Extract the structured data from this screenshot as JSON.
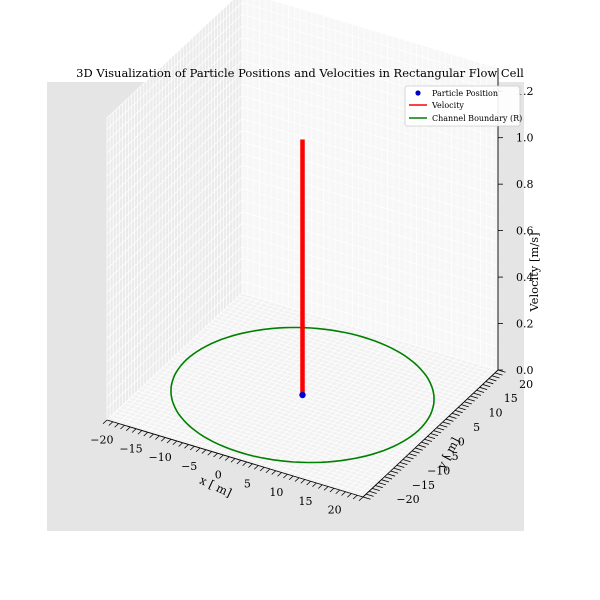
{
  "chart_data": {
    "type": "3d-line",
    "title": "3D Visualization of Particle Positions and Velocities in Rectangular Flow Cell",
    "xlabel": "x [ m]",
    "ylabel": "y [ m]",
    "zlabel": "Velocity [m/s]",
    "x_ticks": [
      -20,
      -15,
      -10,
      -5,
      0,
      5,
      10,
      15,
      20
    ],
    "y_ticks": [
      -20,
      -15,
      -10,
      -5,
      0,
      5,
      10,
      15,
      20
    ],
    "z_ticks": [
      "0.0",
      "0.2",
      "0.4",
      "0.6",
      "0.8",
      "1.0",
      "1.2"
    ],
    "xlim": [
      -22,
      22
    ],
    "ylim": [
      -22,
      22
    ],
    "zlim": [
      0,
      1.3
    ],
    "grid": true,
    "legend_position": "top-right",
    "legend": [
      {
        "label": "Particle Position",
        "kind": "marker",
        "color": "#0000cc"
      },
      {
        "label": "Velocity",
        "kind": "line",
        "color": "#ff0000"
      },
      {
        "label": "Channel Boundary (R)",
        "kind": "line",
        "color": "#008000"
      }
    ],
    "particle": {
      "x": 0,
      "y": 0,
      "z": 0
    },
    "velocity": {
      "x": 0,
      "y": 0,
      "z_start": 0,
      "z_end": 1.1
    },
    "boundary": {
      "shape": "circle",
      "radius": 20,
      "z": 0
    }
  }
}
